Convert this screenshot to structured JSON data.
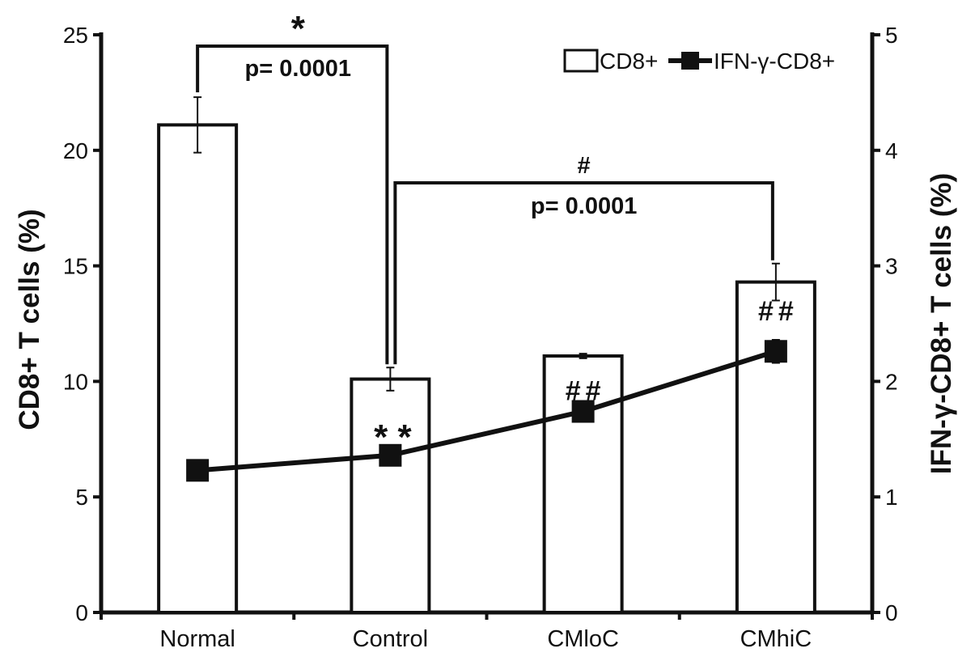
{
  "chart_data": {
    "type": "bar",
    "categories": [
      "Normal",
      "Control",
      "CMloC",
      "CMhiC"
    ],
    "ylabel": "CD8+ T cells (%)",
    "y2label": "IFN-γ-CD8+ T cells (%)",
    "ylim": [
      0,
      25
    ],
    "y2lim": [
      0,
      5
    ],
    "yticks": [
      "0",
      "5",
      "10",
      "15",
      "20",
      "25"
    ],
    "y2ticks": [
      "0",
      "1",
      "2",
      "3",
      "4",
      "5"
    ],
    "grid": false,
    "legend_position": "top-right",
    "series": [
      {
        "name": "CD8+",
        "type": "bar",
        "axis": "left",
        "values": [
          21.1,
          10.1,
          11.1,
          14.3
        ],
        "errors": [
          1.2,
          0.5,
          0.1,
          0.8
        ]
      },
      {
        "name": "IFN-γ-CD8+",
        "type": "line",
        "axis": "right",
        "values": [
          1.23,
          1.36,
          1.74,
          2.26
        ],
        "errors": [
          0.0,
          0.0,
          0.0,
          0.1
        ]
      }
    ],
    "annotations": {
      "bracket1": {
        "symbol": "*",
        "pvalue": "p= 0.0001",
        "from": "Normal",
        "to": "Control"
      },
      "bracket2": {
        "symbol": "#",
        "pvalue": "p= 0.0001",
        "from": "Control",
        "to": "CMhiC"
      },
      "marks": [
        {
          "category": "Control",
          "text": "* *"
        },
        {
          "category": "CMloC",
          "text": "##"
        },
        {
          "category": "CMhiC",
          "text": "##"
        }
      ]
    }
  }
}
